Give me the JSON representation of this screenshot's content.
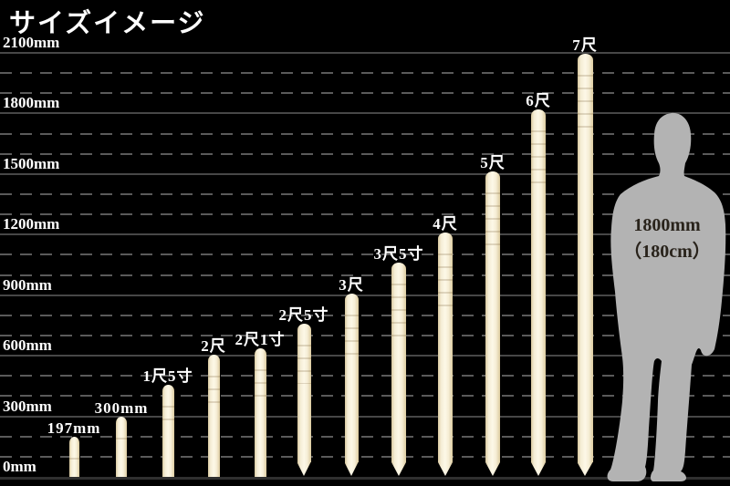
{
  "title": "サイズイメージ",
  "chart_data": {
    "type": "bar",
    "title": "サイズイメージ",
    "unit": "mm",
    "ylim": [
      0,
      2100
    ],
    "grid": "solid gray line every 300mm, dashed gray line every 100mm, black background",
    "legend_position": "none",
    "y_ticks": [
      {
        "mm": 0,
        "label": "0mm"
      },
      {
        "mm": 300,
        "label": "300mm"
      },
      {
        "mm": 600,
        "label": "600mm"
      },
      {
        "mm": 900,
        "label": "900mm"
      },
      {
        "mm": 1200,
        "label": "1200mm"
      },
      {
        "mm": 1500,
        "label": "1500mm"
      },
      {
        "mm": 1800,
        "label": "1800mm"
      },
      {
        "mm": 2100,
        "label": "2100mm"
      }
    ],
    "items": [
      {
        "label": "197mm",
        "height_mm": 197,
        "tip": "flat"
      },
      {
        "label": "300mm",
        "height_mm": 300,
        "tip": "flat"
      },
      {
        "label": "1尺5寸",
        "height_mm": 455,
        "tip": "flat"
      },
      {
        "label": "2尺",
        "height_mm": 606,
        "tip": "flat"
      },
      {
        "label": "2尺1寸",
        "height_mm": 636,
        "tip": "flat"
      },
      {
        "label": "2尺5寸",
        "height_mm": 758,
        "tip": "pointed"
      },
      {
        "label": "3尺",
        "height_mm": 909,
        "tip": "pointed"
      },
      {
        "label": "3尺5寸",
        "height_mm": 1061,
        "tip": "pointed"
      },
      {
        "label": "4尺",
        "height_mm": 1212,
        "tip": "pointed"
      },
      {
        "label": "5尺",
        "height_mm": 1515,
        "tip": "pointed"
      },
      {
        "label": "6尺",
        "height_mm": 1818,
        "tip": "pointed"
      },
      {
        "label": "7尺",
        "height_mm": 2121,
        "tip": "pointed"
      }
    ],
    "reference_figure": {
      "type": "human-silhouette",
      "height_mm": 1800,
      "label_line1": "1800mm",
      "label_line2": "（180cm）"
    }
  },
  "colors": {
    "background": "#000000",
    "stake_light": "#fdf8e7",
    "stake_edge": "#d9c99f",
    "grid_solid": "#474747",
    "grid_dashed": "#5a5a5a",
    "baseline": "#303030",
    "text": "#ffffff",
    "silhouette": "#b3b3b3",
    "figure_text": "#29231b"
  }
}
